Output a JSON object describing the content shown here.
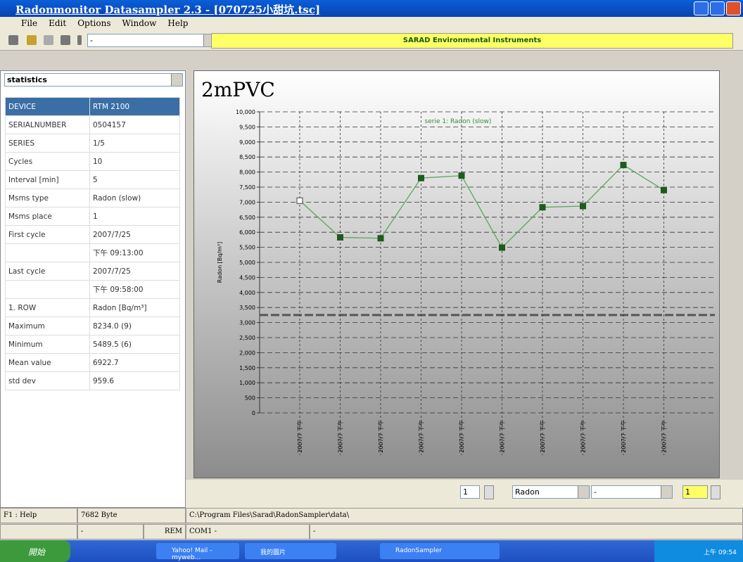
{
  "window": {
    "title": "Radonmonitor Datasampler 2.3 - [070725小甜坑.tsc]"
  },
  "menu": [
    "File",
    "Edit",
    "Options",
    "Window",
    "Help"
  ],
  "toolbar": {
    "combo": "-",
    "banner": "SARAD Environmental Instruments"
  },
  "panel": {
    "selector": "statistics",
    "rows": [
      [
        "DEVICE",
        "RTM 2100"
      ],
      [
        "SERIALNUMBER",
        "0504157"
      ],
      [
        "SERIES",
        "1/5"
      ],
      [
        "Cycles",
        "10"
      ],
      [
        "Interval [min]",
        "5"
      ],
      [
        "Msms type",
        "Radon (slow)"
      ],
      [
        "Msms place",
        "1"
      ],
      [
        "First cycle",
        "2007/7/25"
      ],
      [
        null,
        "下午 09:13:00"
      ],
      [
        "Last cycle",
        "2007/7/25"
      ],
      [
        null,
        "下午 09:58:00"
      ],
      [
        "1. ROW",
        "Radon [Bq/m³]"
      ],
      [
        "Maximum",
        "8234.0 (9)"
      ],
      [
        "Minimum",
        "5489.5 (6)"
      ],
      [
        "Mean value",
        "6922.7"
      ],
      [
        "std dev",
        "959.6"
      ]
    ]
  },
  "chart_data": {
    "type": "line",
    "title": "2mPVC",
    "subtitle": "serie 1: Radon (slow)",
    "y_label": "Radon [Bq/m³]",
    "categories": [
      "2007/7 下午",
      "2007/7 下午",
      "2007/7 下午",
      "2007/7 下午",
      "2007/7 下午",
      "2007/7 下午",
      "2007/7 下午",
      "2007/7 下午",
      "2007/7 下午",
      "2007/7 下午"
    ],
    "series": [
      {
        "name": "serie 1",
        "color": "#5aa85a",
        "marker_color": "#1f5a1f",
        "values": [
          7050,
          5830,
          5800,
          7800,
          7880,
          5489.5,
          6830,
          6870,
          8234,
          7400
        ]
      }
    ],
    "reference_line": 3250,
    "ylim": [
      0,
      10000
    ],
    "yticks": [
      0,
      500,
      {
        "value": 1000,
        "label": "1,000"
      },
      {
        "value": 1500,
        "label": "1,500"
      },
      {
        "value": 2000,
        "label": "2,000"
      },
      {
        "value": 2500,
        "label": "2,500"
      },
      {
        "value": 3000,
        "label": "3,000"
      },
      {
        "value": 3500,
        "label": "3,500"
      },
      {
        "value": 4000,
        "label": "4,000"
      },
      {
        "value": 4500,
        "label": "4,500"
      },
      {
        "value": 5000,
        "label": "5,000"
      },
      {
        "value": 5500,
        "label": "5,500"
      },
      {
        "value": 6000,
        "label": "6,000"
      },
      {
        "value": 6500,
        "label": "6,500"
      },
      {
        "value": 7000,
        "label": "7,000"
      },
      {
        "value": 7500,
        "label": "7,500"
      },
      {
        "value": 8000,
        "label": "8,000"
      },
      {
        "value": 8500,
        "label": "8,500"
      },
      {
        "value": 9000,
        "label": "9,000"
      },
      {
        "value": 9500,
        "label": "9,500"
      },
      {
        "value": 10000,
        "label": "10,000"
      }
    ],
    "grid": true
  },
  "controls": {
    "spin1": "1",
    "quantity": "Radon",
    "combo": "-",
    "spin2": "1"
  },
  "status": {
    "help": "F1 : Help",
    "size": "7682 Byte",
    "path": "C:\\Program Files\\Sarad\\RadonSampler\\data\\",
    "dash1": "-",
    "mode": "REM",
    "port": "COM1 -",
    "dash2": "-"
  },
  "taskbar": {
    "start": "開始",
    "items": [
      "Yahoo! Mail - myweb...",
      "我的圖片",
      "RadonSampler"
    ],
    "clock": "上午 09:54"
  }
}
